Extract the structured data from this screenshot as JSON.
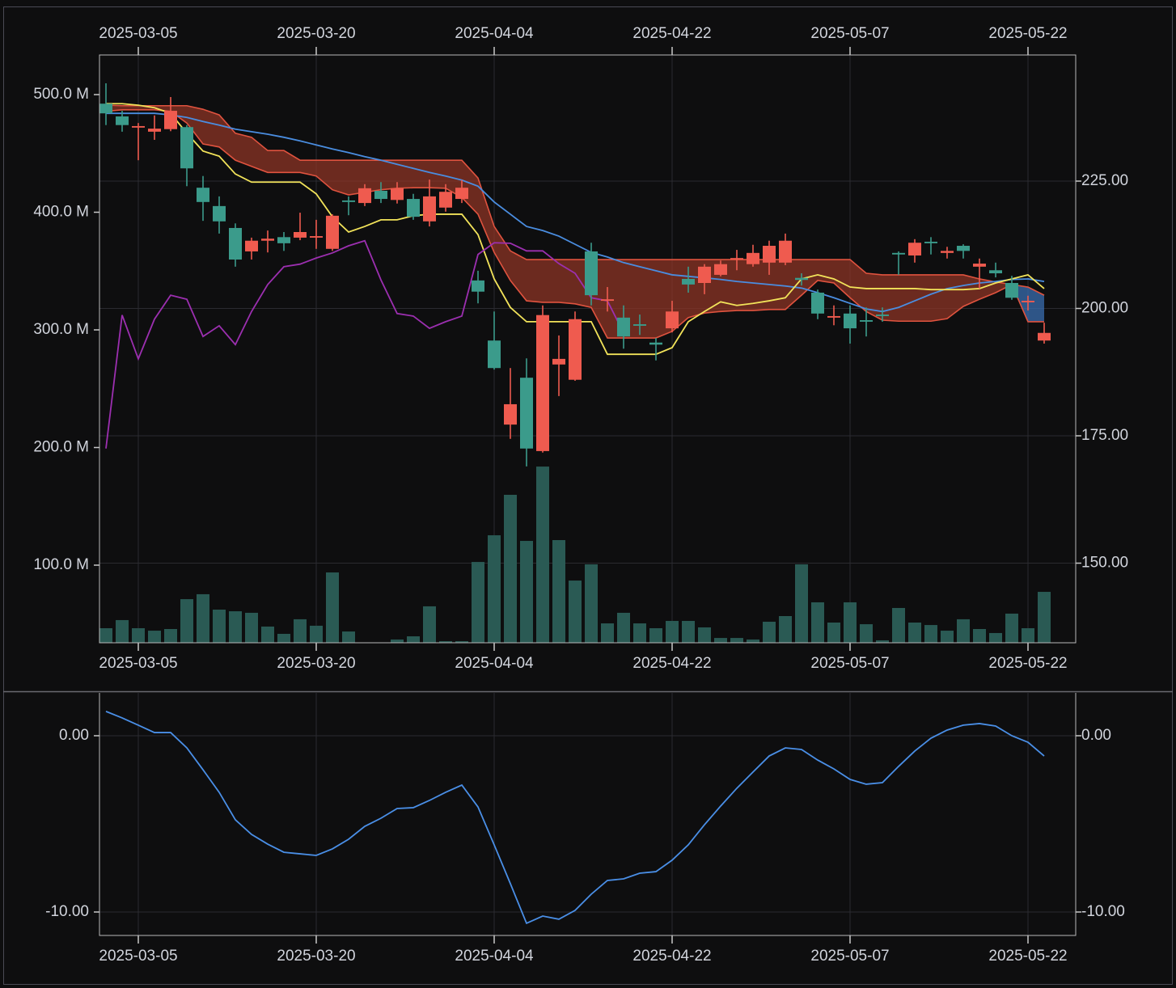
{
  "chart_data": [
    {
      "type": "candlestick",
      "x": [
        "2025-03-03",
        "2025-03-04",
        "2025-03-05",
        "2025-03-06",
        "2025-03-07",
        "2025-03-10",
        "2025-03-11",
        "2025-03-12",
        "2025-03-13",
        "2025-03-14",
        "2025-03-17",
        "2025-03-18",
        "2025-03-19",
        "2025-03-20",
        "2025-03-21",
        "2025-03-24",
        "2025-03-25",
        "2025-03-26",
        "2025-03-27",
        "2025-03-28",
        "2025-03-31",
        "2025-04-01",
        "2025-04-02",
        "2025-04-03",
        "2025-04-04",
        "2025-04-07",
        "2025-04-08",
        "2025-04-09",
        "2025-04-10",
        "2025-04-11",
        "2025-04-14",
        "2025-04-15",
        "2025-04-16",
        "2025-04-17",
        "2025-04-21",
        "2025-04-22",
        "2025-04-23",
        "2025-04-24",
        "2025-04-25",
        "2025-04-28",
        "2025-04-29",
        "2025-04-30",
        "2025-05-01",
        "2025-05-02",
        "2025-05-05",
        "2025-05-06",
        "2025-05-07",
        "2025-05-08",
        "2025-05-09",
        "2025-05-12",
        "2025-05-13",
        "2025-05-14",
        "2025-05-15",
        "2025-05-16",
        "2025-05-19",
        "2025-05-20",
        "2025-05-21",
        "2025-05-22",
        "2025-05-23"
      ],
      "open": [
        240.2,
        237.7,
        235.5,
        234.7,
        235.2,
        235.6,
        223.7,
        220.1,
        215.8,
        211.2,
        213.3,
        214.0,
        213.9,
        213.9,
        211.7,
        221.2,
        220.7,
        223.1,
        221.3,
        221.5,
        217.1,
        219.8,
        221.5,
        205.5,
        193.7,
        177.2,
        186.4,
        172.0,
        189.0,
        186.0,
        211.2,
        201.5,
        198.2,
        196.9,
        193.3,
        196.1,
        205.8,
        205.0,
        206.6,
        209.8,
        208.7,
        209.0,
        209.0,
        206.0,
        203.1,
        198.2,
        199.0,
        197.7,
        198.8,
        210.9,
        210.4,
        213.1,
        210.9,
        212.3,
        208.2,
        207.5,
        205.0,
        201.2,
        193.7
      ],
      "high": [
        244.2,
        238.8,
        236.4,
        237.9,
        241.5,
        236.0,
        226.0,
        222.0,
        216.7,
        213.9,
        215.3,
        215.0,
        218.8,
        217.4,
        218.5,
        222.0,
        224.4,
        224.8,
        224.8,
        222.5,
        225.3,
        224.4,
        225.2,
        207.4,
        199.4,
        188.3,
        190.2,
        200.6,
        194.7,
        199.4,
        212.9,
        204.2,
        200.6,
        198.8,
        194.2,
        201.5,
        208.2,
        208.7,
        209.4,
        211.5,
        212.5,
        213.3,
        214.7,
        206.9,
        203.7,
        200.6,
        200.6,
        200.2,
        200.2,
        211.2,
        213.6,
        214.0,
        212.1,
        212.6,
        209.8,
        209.0,
        206.4,
        202.5,
        197.2
      ],
      "low": [
        236.0,
        234.7,
        229.1,
        233.1,
        234.8,
        224.0,
        217.2,
        214.7,
        208.2,
        209.6,
        211.0,
        211.3,
        213.4,
        211.7,
        211.3,
        218.3,
        220.1,
        220.7,
        220.6,
        217.4,
        216.1,
        219.0,
        220.7,
        201.0,
        188.0,
        174.4,
        169.0,
        171.7,
        182.8,
        185.8,
        200.6,
        199.4,
        192.1,
        194.8,
        189.8,
        195.3,
        203.1,
        202.8,
        206.3,
        207.5,
        208.2,
        206.6,
        208.5,
        204.5,
        197.9,
        196.7,
        193.1,
        194.5,
        197.4,
        206.6,
        209.0,
        210.6,
        209.8,
        209.8,
        203.9,
        206.1,
        201.7,
        199.6,
        193.1
      ],
      "close": [
        238.3,
        236.0,
        235.8,
        235.3,
        238.8,
        227.5,
        220.9,
        217.1,
        209.6,
        213.3,
        213.7,
        212.8,
        215.0,
        214.2,
        218.2,
        220.9,
        223.6,
        221.5,
        223.6,
        218.0,
        222.0,
        222.9,
        223.7,
        203.3,
        188.3,
        181.2,
        172.5,
        198.7,
        190.1,
        197.9,
        202.6,
        201.8,
        194.5,
        196.6,
        192.9,
        199.4,
        204.7,
        208.2,
        208.7,
        209.9,
        210.9,
        212.3,
        213.3,
        205.6,
        199.0,
        198.5,
        196.1,
        197.4,
        198.5,
        210.6,
        212.9,
        212.8,
        211.3,
        211.3,
        208.8,
        206.9,
        202.1,
        201.5,
        195.2
      ],
      "up_color": "#ef5b4f",
      "down_color": "#3b9b8b",
      "cloud": {
        "span_a": [
          238.7,
          239.0,
          239.0,
          239.0,
          238.7,
          236.4,
          232.3,
          231.7,
          229.1,
          227.9,
          226.7,
          226.7,
          226.7,
          226.0,
          223.3,
          222.3,
          222.8,
          223.3,
          223.6,
          223.7,
          223.7,
          223.6,
          221.8,
          218.5,
          211.0,
          205.5,
          201.5,
          201.2,
          201.2,
          200.9,
          200.2,
          194.2,
          194.2,
          194.2,
          194.2,
          195.5,
          198.2,
          199.1,
          199.4,
          199.6,
          199.6,
          199.8,
          199.8,
          202.6,
          205.5,
          205.0,
          202.1,
          199.4,
          197.7,
          197.5,
          197.5,
          197.5,
          198.0,
          200.4,
          201.8,
          203.1,
          204.7,
          204.2,
          202.6
        ],
        "span_b": [
          239.9,
          239.8,
          239.8,
          239.8,
          239.8,
          239.8,
          239.1,
          238.0,
          234.4,
          233.6,
          231.0,
          231.0,
          229.1,
          229.1,
          229.1,
          229.1,
          229.1,
          229.1,
          229.1,
          229.1,
          229.1,
          229.1,
          229.1,
          225.6,
          216.1,
          211.3,
          209.6,
          209.6,
          209.6,
          209.6,
          209.6,
          209.6,
          209.6,
          209.6,
          209.6,
          209.6,
          209.6,
          209.6,
          209.6,
          209.6,
          209.6,
          209.6,
          209.6,
          209.6,
          209.6,
          209.6,
          209.6,
          206.9,
          206.6,
          206.6,
          206.6,
          206.6,
          206.6,
          206.6,
          205.8,
          205.2,
          204.7,
          197.4,
          197.4
        ],
        "line_color": "#e0533f",
        "bear_fill": "#8c3426",
        "bull_fill": "#3a6db0"
      },
      "series": [
        {
          "type": "bar",
          "axis": "y2",
          "color": "#2a5a54",
          "values": [
            46400000,
            53300000,
            46400000,
            44300000,
            45700000,
            71100000,
            75300000,
            62200000,
            60800000,
            59500000,
            47800000,
            41600000,
            54000000,
            48500000,
            93800000,
            43600000,
            33000000,
            33500000,
            36800000,
            39500000,
            65000000,
            35400000,
            35400000,
            102700000,
            125400000,
            159800000,
            120600000,
            183800000,
            121300000,
            86900000,
            100700000,
            50500000,
            59500000,
            50500000,
            46400000,
            52600000,
            52600000,
            47100000,
            38100000,
            38100000,
            36800000,
            51900000,
            56700000,
            100700000,
            68400000,
            51200000,
            68400000,
            49800000,
            36100000,
            63600000,
            51200000,
            49100000,
            44300000,
            54000000,
            45700000,
            42300000,
            58800000,
            46400000,
            77300000
          ]
        },
        {
          "type": "line",
          "color": "#4a8de0",
          "values": [
            238.3,
            238.3,
            238.3,
            238.3,
            238.0,
            237.5,
            236.7,
            236.0,
            235.2,
            234.7,
            234.2,
            233.6,
            232.9,
            232.1,
            231.3,
            230.6,
            229.8,
            229.1,
            228.3,
            227.5,
            226.7,
            226.0,
            225.2,
            224.0,
            220.9,
            218.5,
            216.1,
            215.3,
            214.2,
            212.6,
            211.0,
            210.1,
            209.0,
            208.2,
            207.4,
            206.6,
            206.3,
            206.0,
            205.7,
            205.3,
            205.0,
            204.7,
            204.4,
            204.0,
            203.1,
            202.1,
            201.0,
            199.9,
            199.4,
            200.2,
            201.5,
            202.8,
            203.9,
            204.5,
            205.0,
            205.3,
            205.7,
            205.8,
            205.3
          ]
        },
        {
          "type": "line",
          "color": "#f2e35a",
          "values": [
            240.2,
            240.2,
            239.9,
            239.4,
            238.3,
            234.4,
            230.9,
            229.9,
            226.4,
            224.8,
            224.8,
            224.8,
            224.8,
            222.5,
            218.0,
            215.0,
            216.1,
            217.4,
            217.4,
            218.2,
            218.5,
            218.5,
            218.5,
            214.5,
            205.8,
            200.2,
            197.4,
            197.4,
            197.4,
            197.4,
            197.4,
            191.0,
            191.0,
            191.0,
            191.0,
            192.3,
            197.4,
            199.4,
            201.3,
            200.6,
            201.0,
            201.5,
            202.1,
            205.8,
            206.6,
            205.8,
            204.2,
            203.9,
            203.9,
            203.9,
            203.9,
            203.7,
            203.7,
            203.7,
            203.9,
            205.0,
            205.8,
            206.6,
            203.9
          ]
        },
        {
          "type": "line",
          "color": "#9c2fb0",
          "values": [
            172.5,
            198.7,
            190.1,
            197.9,
            202.6,
            201.8,
            194.5,
            196.6,
            192.9,
            199.4,
            204.7,
            208.2,
            208.7,
            209.9,
            210.9,
            212.3,
            213.3,
            205.6,
            199.0,
            198.5,
            196.1,
            197.4,
            198.5,
            210.6,
            212.9,
            212.8,
            211.3,
            211.3,
            208.8,
            206.9,
            202.1,
            201.5,
            195.2,
            null,
            null,
            null,
            null,
            null,
            null,
            null,
            null,
            null,
            null,
            null,
            null,
            null,
            null,
            null,
            null,
            null,
            null,
            null,
            null,
            null,
            null,
            null,
            null,
            null,
            null
          ]
        }
      ],
      "ylim": [
        134.37,
        249.76
      ],
      "yticks": [
        {
          "value": 150,
          "label": "150.00"
        },
        {
          "value": 175,
          "label": "175.00"
        },
        {
          "value": 200,
          "label": "200.00"
        },
        {
          "value": 225,
          "label": "225.00"
        }
      ],
      "y2lim": [
        34020000,
        533680000
      ],
      "y2ticks": [
        {
          "value": 100000000,
          "label": "100.0 M"
        },
        {
          "value": 200000000,
          "label": "200.0 M"
        },
        {
          "value": 300000000,
          "label": "300.0 M"
        },
        {
          "value": 400000000,
          "label": "400.0 M"
        },
        {
          "value": 500000000,
          "label": "500.0 M"
        }
      ],
      "xticks": [
        "2025-03-05",
        "2025-03-20",
        "2025-04-04",
        "2025-04-22",
        "2025-05-07",
        "2025-05-22"
      ],
      "grid": true
    },
    {
      "type": "line",
      "x": [
        "2025-03-03",
        "2025-03-04",
        "2025-03-05",
        "2025-03-06",
        "2025-03-07",
        "2025-03-10",
        "2025-03-11",
        "2025-03-12",
        "2025-03-13",
        "2025-03-14",
        "2025-03-17",
        "2025-03-18",
        "2025-03-19",
        "2025-03-20",
        "2025-03-21",
        "2025-03-24",
        "2025-03-25",
        "2025-03-26",
        "2025-03-27",
        "2025-03-28",
        "2025-03-31",
        "2025-04-01",
        "2025-04-02",
        "2025-04-03",
        "2025-04-04",
        "2025-04-07",
        "2025-04-08",
        "2025-04-09",
        "2025-04-10",
        "2025-04-11",
        "2025-04-14",
        "2025-04-15",
        "2025-04-16",
        "2025-04-17",
        "2025-04-21",
        "2025-04-22",
        "2025-04-23",
        "2025-04-24",
        "2025-04-25",
        "2025-04-28",
        "2025-04-29",
        "2025-04-30",
        "2025-05-01",
        "2025-05-02",
        "2025-05-05",
        "2025-05-06",
        "2025-05-07",
        "2025-05-08",
        "2025-05-09",
        "2025-05-12",
        "2025-05-13",
        "2025-05-14",
        "2025-05-15",
        "2025-05-16",
        "2025-05-19",
        "2025-05-20",
        "2025-05-21",
        "2025-05-22",
        "2025-05-23"
      ],
      "series": [
        {
          "color": "#4a8fe7",
          "values": [
            1.38,
            1.01,
            0.6,
            0.18,
            0.18,
            -0.69,
            -1.93,
            -3.21,
            -4.77,
            -5.6,
            -6.15,
            -6.61,
            -6.7,
            -6.79,
            -6.42,
            -5.87,
            -5.14,
            -4.68,
            -4.13,
            -4.08,
            -3.67,
            -3.21,
            -2.8,
            -4.04,
            -6.19,
            -8.39,
            -10.64,
            -10.23,
            -10.41,
            -9.91,
            -8.99,
            -8.21,
            -8.12,
            -7.8,
            -7.71,
            -7.06,
            -6.19,
            -5.05,
            -3.99,
            -2.98,
            -2.06,
            -1.15,
            -0.69,
            -0.78,
            -1.38,
            -1.88,
            -2.48,
            -2.75,
            -2.66,
            -1.74,
            -0.87,
            -0.14,
            0.32,
            0.6,
            0.69,
            0.55,
            0.0,
            -0.37,
            -1.15
          ]
        }
      ],
      "ylim": [
        -11.33,
        2.43
      ],
      "yticks": [
        {
          "value": -10,
          "label": "-10.00"
        },
        {
          "value": 0,
          "label": "0.00"
        }
      ],
      "xticks": [
        "2025-03-05",
        "2025-03-20",
        "2025-04-04",
        "2025-04-22",
        "2025-05-07",
        "2025-05-22"
      ],
      "grid": true
    }
  ]
}
